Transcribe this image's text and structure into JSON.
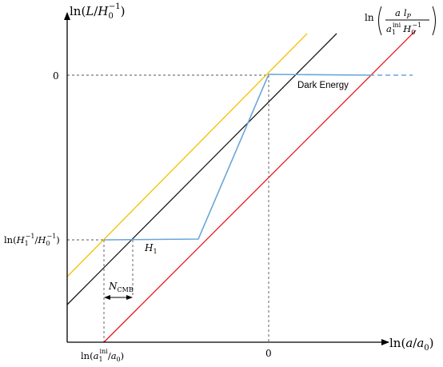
{
  "axes": {
    "y_label_prefix": "ln(",
    "y_label_var": "L",
    "y_label_mid": "/",
    "y_label_H": "H",
    "y_label_sub": "0",
    "y_label_sup": "−1",
    "y_label_suffix": ")",
    "x_label_prefix": "ln(",
    "x_label_var": "a",
    "x_label_mid": "/",
    "x_label_den": "a",
    "x_label_sub": "0",
    "x_label_suffix": ")"
  },
  "ticks": {
    "y_zero": "0",
    "x_zero": "0",
    "y_H1_a": "ln(",
    "y_H1_b": "H",
    "y_H1_c": "1",
    "y_H1_d": "−1",
    "y_H1_e": "/",
    "y_H1_f": "H",
    "y_H1_g": "0",
    "y_H1_h": "−1",
    "y_H1_i": ")",
    "x_a1_a": "ln(",
    "x_a1_b": "a",
    "x_a1_c": "1",
    "x_a1_d": "ini",
    "x_a1_e": "/",
    "x_a1_f": "a",
    "x_a1_g": "0",
    "x_a1_h": ")"
  },
  "labels": {
    "dark_energy": "Dark Energy",
    "H1_var": "H",
    "H1_sub": "1",
    "ncmb_var": "N",
    "ncmb_sub": "CMB",
    "red_ln": "ln",
    "red_num_a": "a",
    "red_num_l": "l",
    "red_num_sub": "P",
    "red_den_a": "a",
    "red_den_sub": "1",
    "red_den_sup": "ini",
    "red_den_H": "H",
    "red_den_Hsub": "0",
    "red_den_Hsup": "−1"
  },
  "colors": {
    "axis": "#000000",
    "black_line": "#1a1a1a",
    "yellow_line": "#f5c000",
    "red_line": "#e8141c",
    "blue_curve": "#6aa6d8",
    "guide": "#555555"
  }
}
